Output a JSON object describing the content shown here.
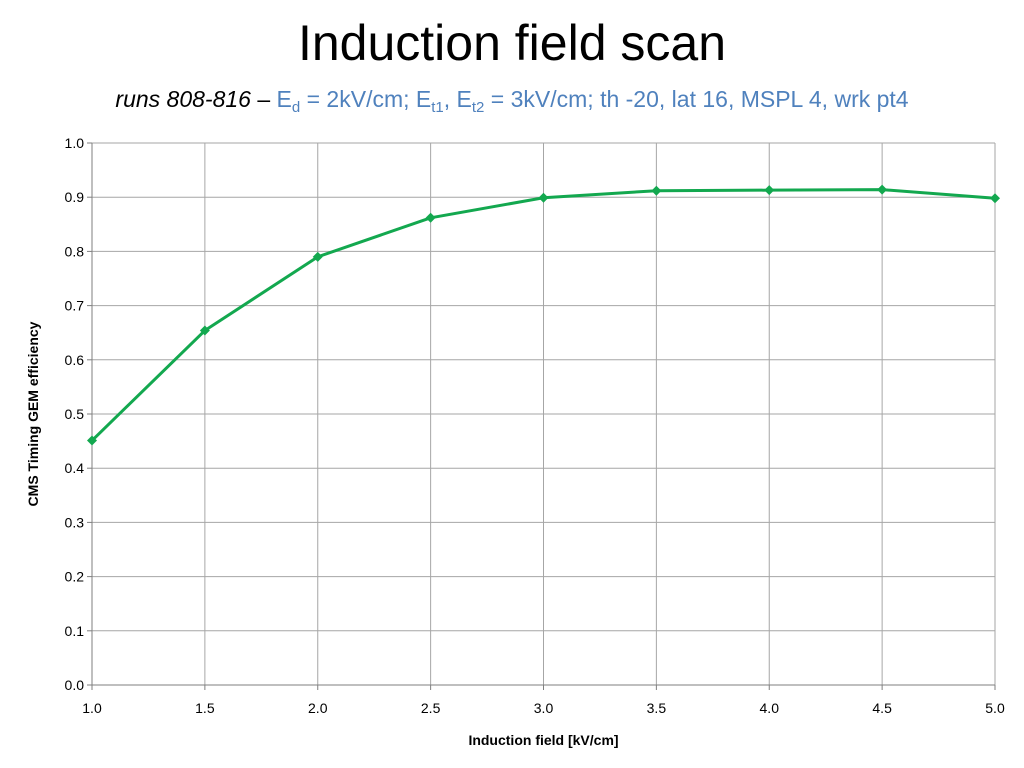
{
  "slide": {
    "title": "Induction field scan",
    "subtitle": {
      "runs": "runs 808-816",
      "dash": " – ",
      "ed_base": "E",
      "ed_sub": "d",
      "ed_rest": " = 2kV/cm; ",
      "et1_base": "E",
      "et1_sub": "t1",
      "sep": ", ",
      "et2_base": "E",
      "et2_sub": "t2",
      "tail": " = 3kV/cm; th -20, lat 16, MSPL 4, wrk pt4"
    }
  },
  "chart_data": {
    "type": "line",
    "xlabel": "Induction field [kV/cm]",
    "ylabel": "CMS Timing GEM efficiency",
    "xlim": [
      1.0,
      5.0
    ],
    "ylim": [
      0.0,
      1.0
    ],
    "xticks": [
      "1.0",
      "1.5",
      "2.0",
      "2.5",
      "3.0",
      "3.5",
      "4.0",
      "4.5",
      "5.0"
    ],
    "yticks": [
      "0.0",
      "0.1",
      "0.2",
      "0.3",
      "0.4",
      "0.5",
      "0.6",
      "0.7",
      "0.8",
      "0.9",
      "1.0"
    ],
    "grid": true,
    "legend": "none",
    "series": [
      {
        "color": "#13a84f",
        "marker": "diamond",
        "x": [
          1.0,
          1.5,
          2.0,
          2.5,
          3.0,
          3.5,
          4.0,
          4.5,
          5.0
        ],
        "y": [
          0.451,
          0.654,
          0.79,
          0.862,
          0.899,
          0.912,
          0.913,
          0.914,
          0.898
        ]
      }
    ]
  }
}
